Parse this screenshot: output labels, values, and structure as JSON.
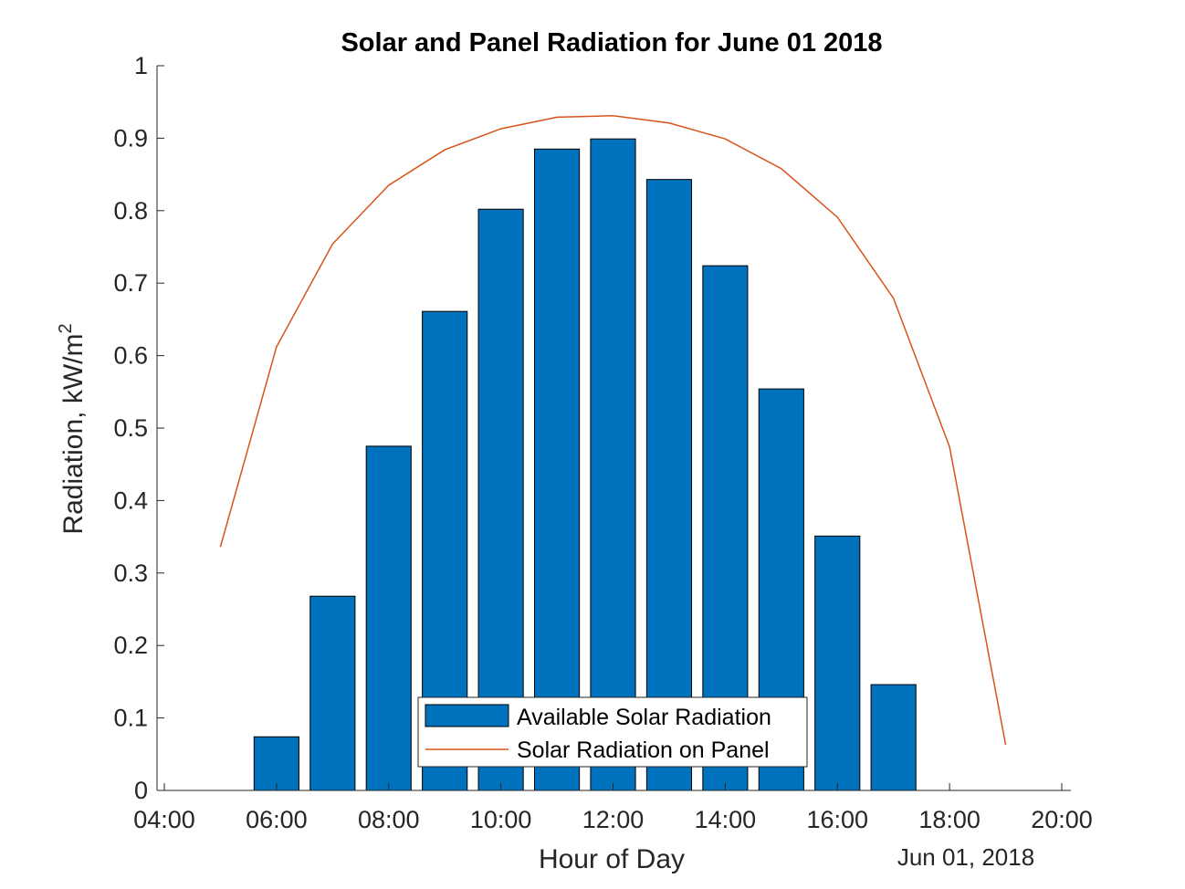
{
  "chart_data": {
    "type": "bar",
    "title": "Solar and Panel Radiation for June 01 2018",
    "xlabel": "Hour of Day",
    "ylabel": "Radiation,  kW/m",
    "ylabel_superscript": "2",
    "date_label": "Jun 01, 2018",
    "x_ticks": [
      "04:00",
      "06:00",
      "08:00",
      "10:00",
      "12:00",
      "14:00",
      "16:00",
      "18:00",
      "20:00"
    ],
    "y_ticks": [
      "0",
      "0.1",
      "0.2",
      "0.3",
      "0.4",
      "0.5",
      "0.6",
      "0.7",
      "0.8",
      "0.9",
      "1"
    ],
    "xlim": [
      "04:00",
      "20:00"
    ],
    "ylim": [
      0,
      1
    ],
    "grid": false,
    "legend_position": "bottom-center",
    "series": [
      {
        "name": "Available Solar Radiation",
        "type": "bar",
        "color": "#0072BD",
        "x": [
          "05:00",
          "06:00",
          "07:00",
          "08:00",
          "09:00",
          "10:00",
          "11:00",
          "12:00",
          "13:00",
          "14:00",
          "15:00",
          "16:00",
          "17:00",
          "18:00",
          "19:00"
        ],
        "values": [
          0,
          0.074,
          0.268,
          0.475,
          0.661,
          0.802,
          0.885,
          0.899,
          0.843,
          0.724,
          0.554,
          0.351,
          0.146,
          0,
          0
        ]
      },
      {
        "name": "Solar Radiation on Panel",
        "type": "line",
        "color": "#D95319",
        "x": [
          "05:00",
          "06:00",
          "07:00",
          "08:00",
          "09:00",
          "10:00",
          "11:00",
          "12:00",
          "13:00",
          "14:00",
          "15:00",
          "16:00",
          "17:00",
          "18:00",
          "19:00"
        ],
        "values": [
          0.336,
          0.612,
          0.754,
          0.835,
          0.884,
          0.913,
          0.929,
          0.931,
          0.921,
          0.899,
          0.858,
          0.791,
          0.679,
          0.474,
          0.063
        ]
      }
    ]
  }
}
